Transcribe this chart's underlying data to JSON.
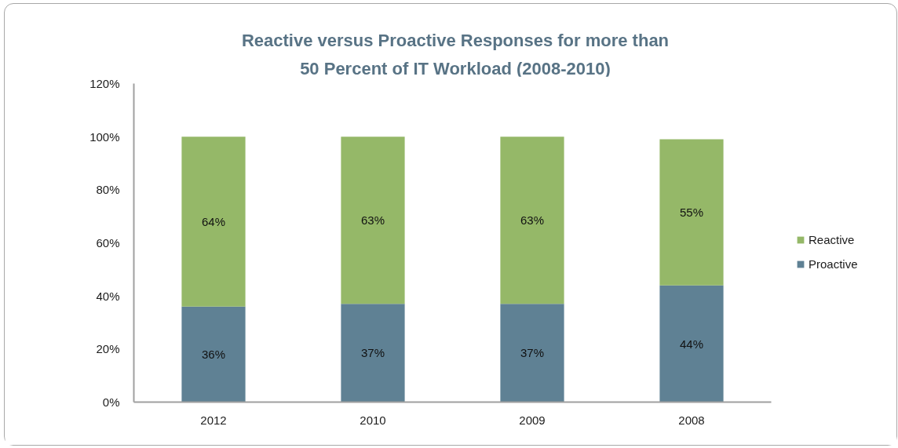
{
  "chart_data": {
    "type": "bar",
    "stacked": true,
    "title": "Reactive versus Proactive Responses for more than 50 Percent of IT Workload (2008-2010)",
    "categories": [
      "2012",
      "2010",
      "2009",
      "2008"
    ],
    "series": [
      {
        "name": "Proactive",
        "color": "#5f8194",
        "values": [
          36,
          37,
          37,
          44
        ],
        "value_labels": [
          "36%",
          "37%",
          "37%",
          "44%"
        ]
      },
      {
        "name": "Reactive",
        "color": "#95b868",
        "values": [
          64,
          63,
          63,
          55
        ],
        "value_labels": [
          "64%",
          "63%",
          "63%",
          "55%"
        ]
      }
    ],
    "ylim": [
      0,
      120
    ],
    "yticks": [
      {
        "value": 0,
        "label": "0%"
      },
      {
        "value": 20,
        "label": "20%"
      },
      {
        "value": 40,
        "label": "40%"
      },
      {
        "value": 60,
        "label": "60%"
      },
      {
        "value": 80,
        "label": "80%"
      },
      {
        "value": 100,
        "label": "100%"
      },
      {
        "value": 120,
        "label": "120%"
      }
    ],
    "legend": "right",
    "grid": false
  }
}
